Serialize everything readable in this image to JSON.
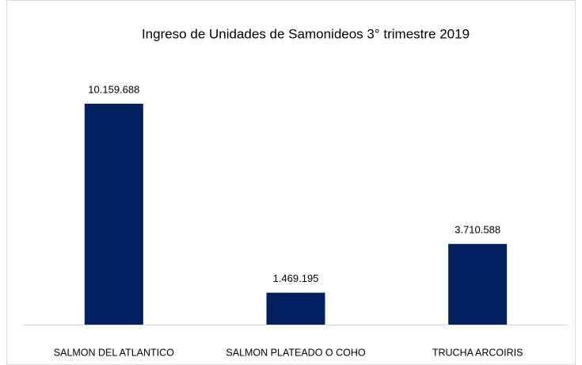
{
  "chart_data": {
    "type": "bar",
    "title": "Ingreso de Unidades de Samonideos 3° trimestre 2019",
    "categories": [
      "SALMON DEL ATLANTICO",
      "SALMON PLATEADO O COHO",
      "TRUCHA ARCOIRIS"
    ],
    "values": [
      10159688,
      1469195,
      3710588
    ],
    "value_labels": [
      "10.159.688",
      "1.469.195",
      "3.710.588"
    ],
    "color": "#002060"
  }
}
